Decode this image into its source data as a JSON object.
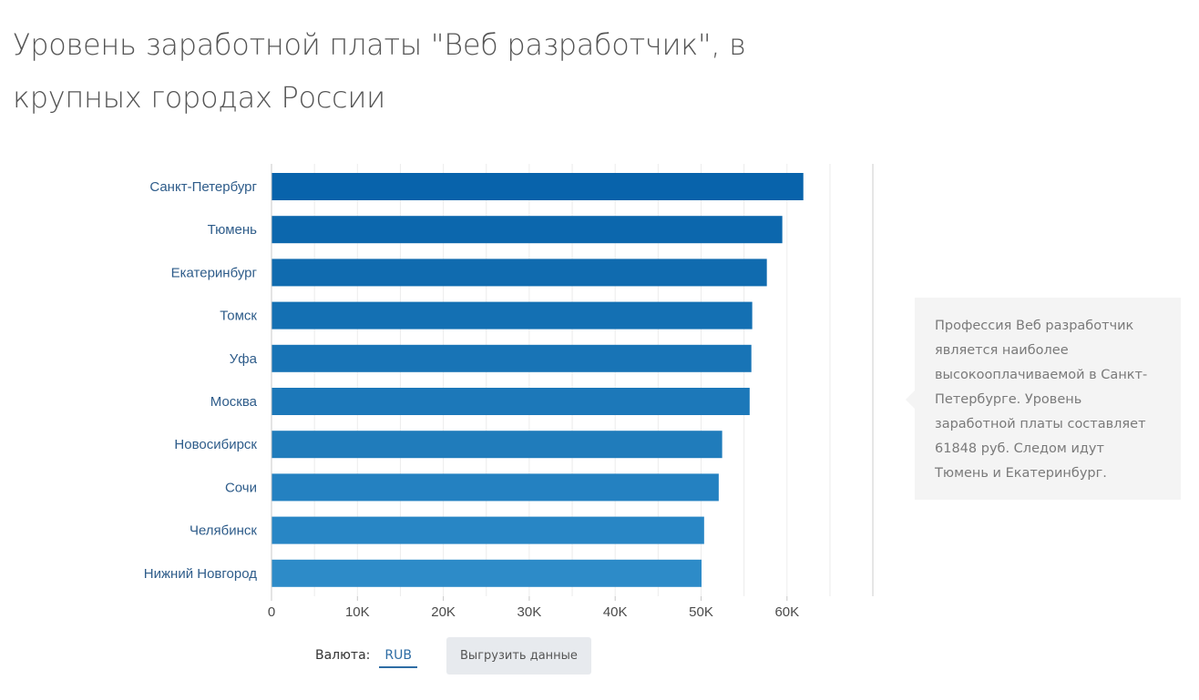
{
  "page": {
    "title": "Уровень заработной платы \"Веб разработчик\", в крупных городах России"
  },
  "chart_data": {
    "type": "bar",
    "orientation": "horizontal",
    "categories": [
      "Санкт-Петербург",
      "Тюмень",
      "Екатеринбург",
      "Томск",
      "Уфа",
      "Москва",
      "Новосибирск",
      "Сочи",
      "Челябинск",
      "Нижний Новгород"
    ],
    "values": [
      61848,
      59400,
      57600,
      55900,
      55800,
      55600,
      52400,
      52000,
      50300,
      50000
    ],
    "xlim": [
      0,
      70000
    ],
    "x_ticks": [
      0,
      10000,
      20000,
      30000,
      40000,
      50000,
      60000
    ],
    "x_tick_labels": [
      "0",
      "10K",
      "20K",
      "30K",
      "40K",
      "50K",
      "60K"
    ],
    "grid": true,
    "bar_colors": [
      "#0863ab",
      "#0c67ad",
      "#106baf",
      "#1470b3",
      "#1874b6",
      "#1c78b9",
      "#207cbb",
      "#2481c1",
      "#2886c5",
      "#2d8bc8"
    ],
    "label_color": "#2e5c8a"
  },
  "info": {
    "text": "Профессия Веб разработчик является наиболее высокооплачиваемой в Санкт-Петербурге. Уровень заработной платы составляет 61848 руб. Следом идут Тюмень и Екатеринбург."
  },
  "controls": {
    "currency_label": "Валюта:",
    "currency_value": "RUB",
    "export_label": "Выгрузить данные"
  }
}
